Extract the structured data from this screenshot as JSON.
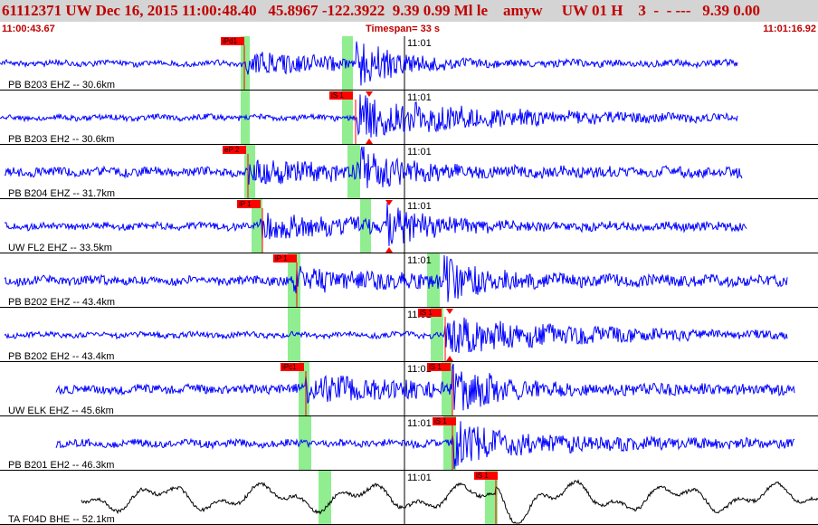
{
  "header": {
    "title": "61112371 UW Dec 16, 2015 11:00:48.40   45.8967 -122.3922  9.39 0.99 Ml le    amyw     UW 01 H    3  -  - ---   9.39 0.00",
    "time_start": "11:00:43.67",
    "timespan": "Timespan=  33 s",
    "time_end": "11:01:16.92"
  },
  "colors": {
    "trace_blue": "#0000ff",
    "trace_black": "#000000",
    "pick_red": "#ff0000",
    "window_green": "#90ee90",
    "header_bg": "#d4d4d4",
    "header_text": "#c00000"
  },
  "traces": [
    {
      "label": "PB B203 EHZ -- 30.6km",
      "minute_label": "11:01",
      "color": "blue",
      "start": 0,
      "end": 815,
      "onset": 272,
      "s_onset": 393,
      "noise": 3,
      "p_amp": 10,
      "s_amp": 28,
      "green": [
        [
          266,
          276
        ],
        [
          378,
          390
        ]
      ],
      "picks": [
        {
          "label": "iPd1",
          "x": 244,
          "line": 270
        }
      ],
      "triangle": null
    },
    {
      "label": "PB B203 EH2 -- 30.6km",
      "minute_label": "11:01",
      "color": "blue",
      "start": 0,
      "end": 815,
      "onset": 395,
      "s_onset": 395,
      "noise": 3,
      "p_amp": 22,
      "s_amp": 26,
      "green": [
        [
          266,
          276
        ],
        [
          378,
          390
        ]
      ],
      "picks": [
        {
          "label": "iS 1",
          "x": 364,
          "line": 393
        }
      ],
      "triangle": 408
    },
    {
      "label": "PB B204 EHZ -- 31.7km",
      "minute_label": "11:01",
      "color": "blue",
      "start": 5,
      "end": 820,
      "onset": 275,
      "s_onset": 398,
      "noise": 5,
      "p_amp": 10,
      "s_amp": 24,
      "green": [
        [
          270,
          282
        ],
        [
          384,
          398
        ]
      ],
      "picks": [
        {
          "label": "eP 2",
          "x": 246,
          "line": 274
        }
      ],
      "triangle": null
    },
    {
      "label": "UW FL2 EHZ -- 33.5km",
      "minute_label": "11:01",
      "color": "blue",
      "start": 5,
      "end": 825,
      "onset": 288,
      "s_onset": 428,
      "noise": 4,
      "p_amp": 12,
      "s_amp": 24,
      "green": [
        [
          278,
          290
        ],
        [
          398,
          410
        ]
      ],
      "picks": [
        {
          "label": "iP 1",
          "x": 262,
          "line": 290
        }
      ],
      "triangle": 430
    },
    {
      "label": "PB B202 EHZ -- 43.4km",
      "minute_label": "11:01",
      "color": "blue",
      "start": 5,
      "end": 870,
      "onset": 325,
      "s_onset": 490,
      "noise": 5,
      "p_amp": 11,
      "s_amp": 26,
      "green": [
        [
          318,
          332
        ],
        [
          472,
          486
        ]
      ],
      "picks": [
        {
          "label": "iP 1",
          "x": 302,
          "line": 328
        }
      ],
      "triangle": null
    },
    {
      "label": "PB B202 EH2 -- 43.4km",
      "minute_label": "11:01",
      "color": "blue",
      "start": 5,
      "end": 870,
      "onset": 492,
      "s_onset": 492,
      "noise": 3,
      "p_amp": 20,
      "s_amp": 26,
      "green": [
        [
          318,
          332
        ],
        [
          476,
          490
        ]
      ],
      "picks": [
        {
          "label": "iS 1",
          "x": 462,
          "line": 492
        }
      ],
      "triangle": 497
    },
    {
      "label": "UW ELK EHZ -- 45.6km",
      "minute_label": "11:01",
      "color": "blue",
      "start": 62,
      "end": 878,
      "onset": 338,
      "s_onset": 500,
      "noise": 5,
      "p_amp": 12,
      "s_amp": 28,
      "green": [
        [
          330,
          342
        ],
        [
          488,
          500
        ]
      ],
      "picks": [
        {
          "label": "iPc1",
          "x": 310,
          "line": 338
        },
        {
          "label": "iS 1",
          "x": 472,
          "line": 500
        }
      ],
      "triangle": null
    },
    {
      "label": "PB B201 EH2 -- 46.3km",
      "minute_label": "11:01",
      "color": "blue",
      "start": 62,
      "end": 878,
      "onset": 500,
      "s_onset": 500,
      "noise": 4,
      "p_amp": 14,
      "s_amp": 28,
      "green": [
        [
          330,
          344
        ],
        [
          490,
          504
        ]
      ],
      "picks": [
        {
          "label": "iS 1",
          "x": 478,
          "line": 500
        }
      ],
      "triangle": null
    },
    {
      "label": "TA F04D BHE -- 52.1km",
      "minute_label": "11:01",
      "color": "black",
      "start": 90,
      "end": 904,
      "onset": 548,
      "s_onset": 548,
      "noise": 18,
      "p_amp": 8,
      "s_amp": 24,
      "green": [
        [
          352,
          366
        ],
        [
          536,
          550
        ]
      ],
      "picks": [
        {
          "label": "iS 1",
          "x": 524,
          "line": 548
        }
      ],
      "triangle": null
    }
  ]
}
